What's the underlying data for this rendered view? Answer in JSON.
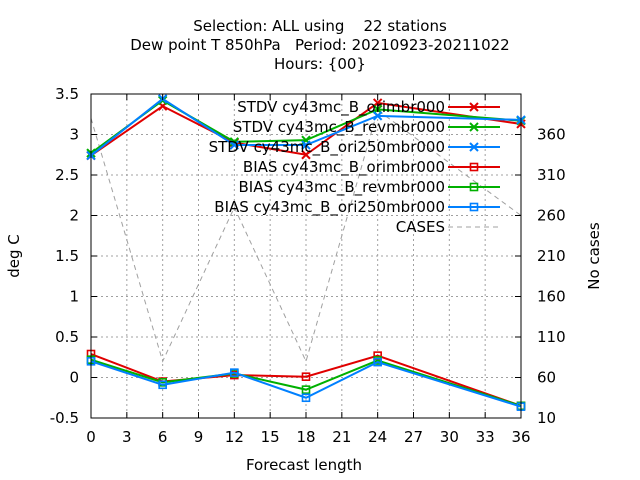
{
  "title": {
    "line1": "Selection: ALL using    22 stations",
    "line2": "Dew point T 850hPa   Period: 20210923-20211022",
    "line3": "Hours: {00}"
  },
  "chart_data": {
    "type": "line",
    "title": "Selection: ALL using    22 stations / Dew point T 850hPa   Period: 20210923-20211022 / Hours: {00}",
    "xlabel": "Forecast length",
    "ylabel": "deg C",
    "y2label": "No cases",
    "x": [
      0,
      6,
      12,
      18,
      24,
      36
    ],
    "xlim": [
      0,
      36
    ],
    "ylim": [
      -0.5,
      3.5
    ],
    "y2lim": [
      10,
      410
    ],
    "xticks": [
      "0",
      "3",
      "6",
      "9",
      "12",
      "15",
      "18",
      "21",
      "24",
      "27",
      "30",
      "33",
      "36"
    ],
    "yticks": [
      "-0.5",
      "0",
      "0.5",
      "1",
      "1.5",
      "2",
      "2.5",
      "3",
      "3.5"
    ],
    "y2ticks": [
      "10",
      "60",
      "110",
      "160",
      "210",
      "260",
      "310",
      "360"
    ],
    "grid": true,
    "legend_position": "top-right",
    "series": [
      {
        "name": "STDV cy43mc_B_orimbr000",
        "color": "#e00000",
        "marker": "x",
        "axis": "y1",
        "values": [
          2.74,
          3.35,
          2.9,
          2.75,
          3.39,
          3.13
        ]
      },
      {
        "name": "STDV cy43mc_B_revmbr000",
        "color": "#00b000",
        "marker": "x",
        "axis": "y1",
        "values": [
          2.77,
          3.42,
          2.91,
          2.93,
          3.31,
          3.17
        ]
      },
      {
        "name": "STDV cy43mc_B_ori250mbr000",
        "color": "#0080ff",
        "marker": "x",
        "axis": "y1",
        "values": [
          2.74,
          3.44,
          2.87,
          2.87,
          3.23,
          3.18
        ]
      },
      {
        "name": "BIAS cy43mc_B_orimbr000",
        "color": "#e00000",
        "marker": "square",
        "axis": "y1",
        "values": [
          0.29,
          -0.05,
          0.03,
          0.01,
          0.27,
          -0.35
        ]
      },
      {
        "name": "BIAS cy43mc_B_revmbr000",
        "color": "#00b000",
        "marker": "square",
        "axis": "y1",
        "values": [
          0.22,
          -0.06,
          0.05,
          -0.15,
          0.21,
          -0.35
        ]
      },
      {
        "name": "BIAS cy43mc_B_ori250mbr000",
        "color": "#0080ff",
        "marker": "square",
        "axis": "y1",
        "values": [
          0.2,
          -0.09,
          0.06,
          -0.25,
          0.19,
          -0.36
        ]
      },
      {
        "name": "CASES",
        "color": "#a0a0a0",
        "marker": "none",
        "dashed": true,
        "axis": "y2",
        "values": [
          380,
          80,
          270,
          80,
          390,
          260
        ]
      }
    ]
  }
}
